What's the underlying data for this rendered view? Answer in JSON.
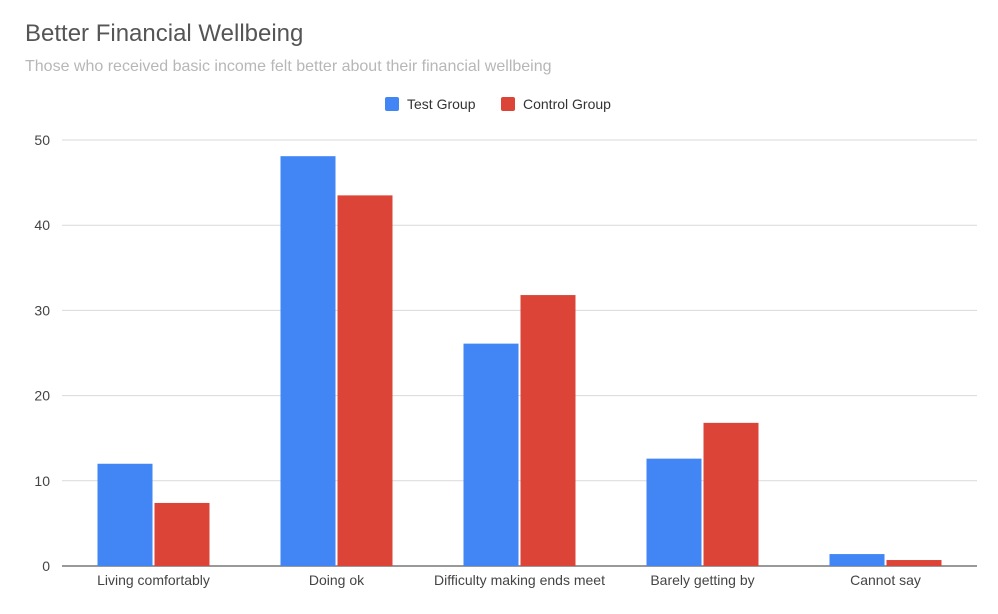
{
  "chart_data": {
    "type": "bar",
    "title": "Better Financial Wellbeing",
    "subtitle": "Those who received basic income felt better about their financial wellbeing",
    "categories": [
      "Living comfortably",
      "Doing ok",
      "Difficulty making ends meet",
      "Barely getting by",
      "Cannot say"
    ],
    "series": [
      {
        "name": "Test Group",
        "color": "#4285f4",
        "values": [
          12,
          48.1,
          26.1,
          12.6,
          1.4
        ]
      },
      {
        "name": "Control Group",
        "color": "#db4437",
        "values": [
          7.4,
          43.5,
          31.8,
          16.8,
          0.7
        ]
      }
    ],
    "yticks": [
      0,
      10,
      20,
      30,
      40,
      50
    ],
    "ylim": [
      0,
      50
    ],
    "xlabel": "",
    "ylabel": "",
    "legend_position": "top-center",
    "grid": true
  }
}
